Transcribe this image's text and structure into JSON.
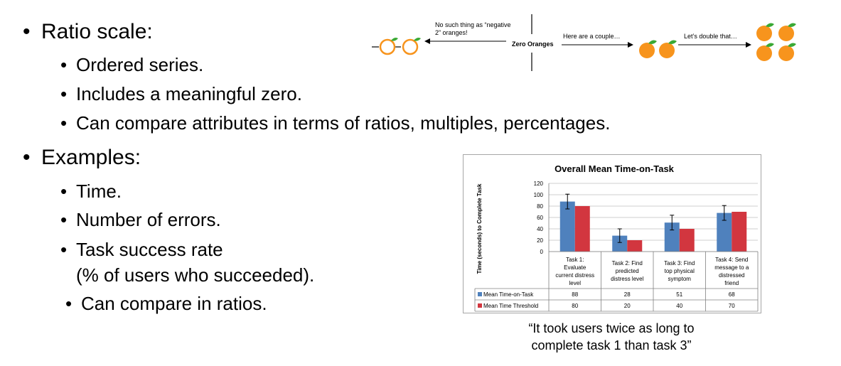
{
  "bullets": {
    "ratio_scale": "Ratio scale:",
    "ordered": "Ordered series.",
    "zero": "Includes a meaningful zero.",
    "compare": "Can compare attributes in terms of ratios, multiples, percentages.",
    "examples": "Examples:",
    "time": "Time.",
    "errors": "Number of errors.",
    "success_line1": "Task success rate",
    "success_line2": "(% of users who succeeded).",
    "compare_ratios": "Can compare in ratios."
  },
  "diagram": {
    "negative_note_line1": "No such thing as “negative",
    "negative_note_line2": "2” oranges!",
    "zero_label": "Zero Oranges",
    "couple_label": "Here are a couple…",
    "double_label": "Let’s double that…",
    "orange_color": "#f7941d",
    "leaf_color": "#3aa935"
  },
  "chart_data": {
    "type": "bar",
    "title": "Overall Mean Time-on-Task",
    "ylabel": "Time (seconds) to Complete Task",
    "ylim": [
      0,
      120
    ],
    "yticks": [
      "0",
      "20",
      "40",
      "60",
      "80",
      "100",
      "120"
    ],
    "categories": [
      [
        "Task 1:",
        "Evaluate",
        "current distress",
        "level"
      ],
      [
        "Task 2: Find",
        "predicted",
        "distress level"
      ],
      [
        "Task 3: Find",
        "top physical",
        "symptom"
      ],
      [
        "Task 4: Send",
        "message to a",
        "distressed",
        "friend"
      ]
    ],
    "series": [
      {
        "name": "Mean Time-on-Task",
        "values": [
          88,
          28,
          51,
          68
        ],
        "error": [
          13,
          12,
          13,
          13
        ],
        "color": "#4f81bd"
      },
      {
        "name": "Mean Time Threshold",
        "values": [
          80,
          20,
          40,
          70
        ],
        "color": "#d2363f"
      }
    ],
    "table_values": [
      [
        "88",
        "28",
        "51",
        "68"
      ],
      [
        "80",
        "20",
        "40",
        "70"
      ]
    ],
    "grid": true,
    "legend": "table-bottom"
  },
  "caption": {
    "line1": "“It took users twice as long to",
    "line2": "complete task 1 than task 3”"
  }
}
